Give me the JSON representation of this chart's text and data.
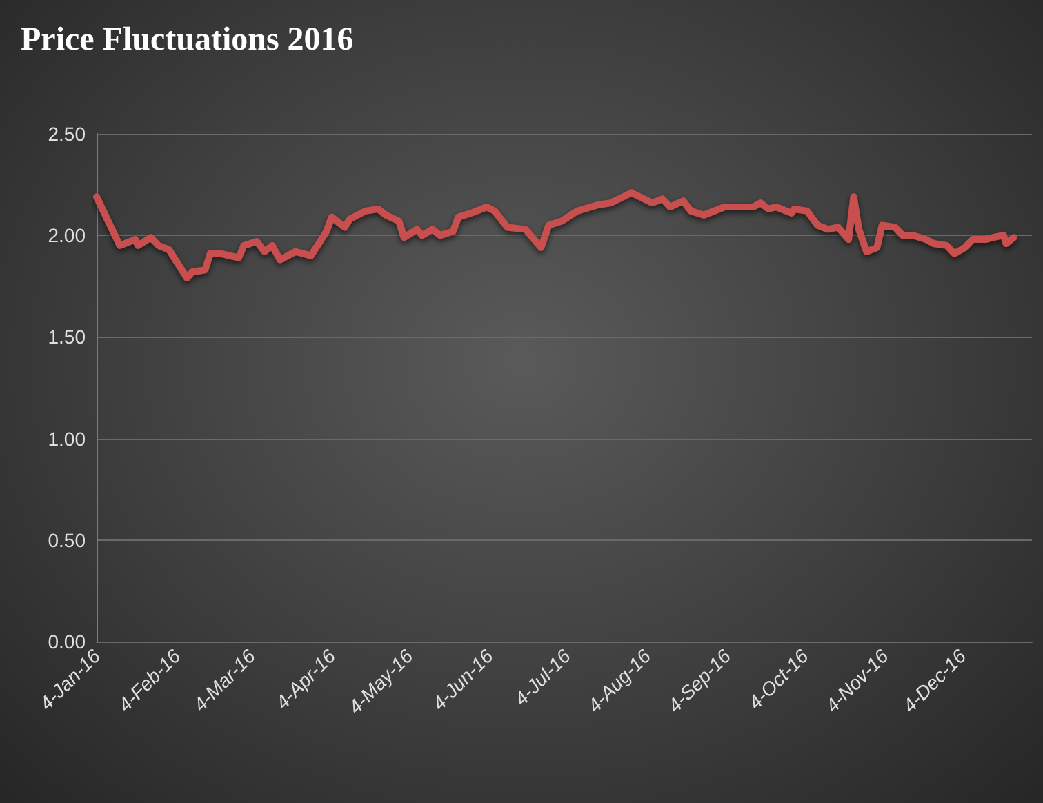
{
  "chart_data": {
    "type": "line",
    "title": "Price Fluctuations 2016",
    "x": [
      "2016-01-04",
      "2016-01-13",
      "2016-01-19",
      "2016-01-20",
      "2016-01-25",
      "2016-01-28",
      "2016-02-01",
      "2016-02-08",
      "2016-02-10",
      "2016-02-15",
      "2016-02-17",
      "2016-02-21",
      "2016-02-28",
      "2016-03-01",
      "2016-03-06",
      "2016-03-09",
      "2016-03-12",
      "2016-03-15",
      "2016-03-21",
      "2016-03-27",
      "2016-04-02",
      "2016-04-04",
      "2016-04-09",
      "2016-04-11",
      "2016-04-17",
      "2016-04-22",
      "2016-04-25",
      "2016-04-30",
      "2016-05-02",
      "2016-05-07",
      "2016-05-09",
      "2016-05-13",
      "2016-05-16",
      "2016-05-21",
      "2016-05-23",
      "2016-05-28",
      "2016-06-03",
      "2016-06-06",
      "2016-06-11",
      "2016-06-18",
      "2016-06-24",
      "2016-06-27",
      "2016-07-02",
      "2016-07-08",
      "2016-07-16",
      "2016-07-21",
      "2016-07-29",
      "2016-08-06",
      "2016-08-10",
      "2016-08-13",
      "2016-08-18",
      "2016-08-21",
      "2016-08-26",
      "2016-09-03",
      "2016-09-14",
      "2016-09-17",
      "2016-09-20",
      "2016-09-23",
      "2016-09-29",
      "2016-09-30",
      "2016-10-05",
      "2016-10-09",
      "2016-10-13",
      "2016-10-17",
      "2016-10-21",
      "2016-10-23",
      "2016-10-25",
      "2016-10-28",
      "2016-11-01",
      "2016-11-03",
      "2016-11-08",
      "2016-11-11",
      "2016-11-15",
      "2016-11-20",
      "2016-11-23",
      "2016-11-28",
      "2016-12-01",
      "2016-12-05",
      "2016-12-08",
      "2016-12-13",
      "2016-12-16",
      "2016-12-20",
      "2016-12-21",
      "2016-12-24"
    ],
    "series": [
      {
        "color": "#c9504f",
        "values": [
          2.19,
          1.95,
          1.98,
          1.95,
          1.99,
          1.95,
          1.93,
          1.79,
          1.82,
          1.83,
          1.91,
          1.91,
          1.89,
          1.95,
          1.97,
          1.92,
          1.95,
          1.88,
          1.92,
          1.9,
          2.02,
          2.09,
          2.04,
          2.08,
          2.12,
          2.13,
          2.1,
          2.07,
          1.99,
          2.03,
          2.0,
          2.03,
          2.0,
          2.02,
          2.09,
          2.11,
          2.14,
          2.12,
          2.04,
          2.03,
          1.94,
          2.05,
          2.07,
          2.12,
          2.15,
          2.16,
          2.21,
          2.16,
          2.18,
          2.14,
          2.17,
          2.12,
          2.1,
          2.14,
          2.14,
          2.16,
          2.13,
          2.14,
          2.11,
          2.13,
          2.12,
          2.05,
          2.03,
          2.04,
          1.98,
          2.19,
          2.03,
          1.92,
          1.94,
          2.05,
          2.04,
          2.0,
          2.0,
          1.98,
          1.96,
          1.95,
          1.91,
          1.94,
          1.98,
          1.98,
          1.99,
          2.0,
          1.96,
          1.99
        ]
      }
    ],
    "xlim": [
      "2016-01-04",
      "2016-12-31"
    ],
    "xticks": [
      {
        "value": "2016-01-04",
        "label": "4-Jan-16"
      },
      {
        "value": "2016-02-04",
        "label": "4-Feb-16"
      },
      {
        "value": "2016-03-04",
        "label": "4-Mar-16"
      },
      {
        "value": "2016-04-04",
        "label": "4-Apr-16"
      },
      {
        "value": "2016-05-04",
        "label": "4-May-16"
      },
      {
        "value": "2016-06-04",
        "label": "4-Jun-16"
      },
      {
        "value": "2016-07-04",
        "label": "4-Jul-16"
      },
      {
        "value": "2016-08-04",
        "label": "4-Aug-16"
      },
      {
        "value": "2016-09-04",
        "label": "4-Sep-16"
      },
      {
        "value": "2016-10-04",
        "label": "4-Oct-16"
      },
      {
        "value": "2016-11-04",
        "label": "4-Nov-16"
      },
      {
        "value": "2016-12-04",
        "label": "4-Dec-16"
      }
    ],
    "ylim": [
      0,
      2.5
    ],
    "yticks": [
      {
        "value": 0,
        "label": "0.00"
      },
      {
        "value": 0.5,
        "label": "0.50"
      },
      {
        "value": 1,
        "label": "1.00"
      },
      {
        "value": 1.5,
        "label": "1.50"
      },
      {
        "value": 2,
        "label": "2.00"
      },
      {
        "value": 2.5,
        "label": "2.50"
      }
    ],
    "grid": "y",
    "marker": "none",
    "line_style": "solid"
  }
}
